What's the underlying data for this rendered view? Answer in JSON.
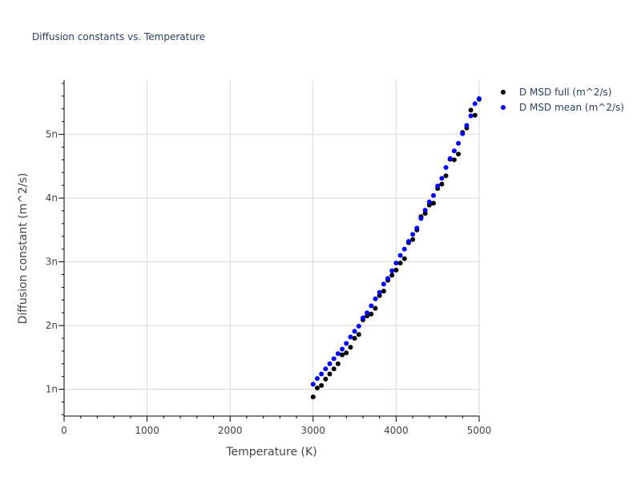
{
  "chart_data": {
    "type": "scatter",
    "title": "Diffusion constants vs. Temperature",
    "xlabel": "Temperature (K)",
    "ylabel": "Diffusion constant (m^2/s)",
    "xlim": [
      0,
      5000
    ],
    "ylim": [
      5.8e-10,
      5.85e-09
    ],
    "x_ticks": [
      0,
      1000,
      2000,
      3000,
      4000,
      5000
    ],
    "x_tick_labels": [
      "0",
      "1000",
      "2000",
      "3000",
      "4000",
      "5000"
    ],
    "y_ticks": [
      1e-09,
      2e-09,
      3e-09,
      4e-09,
      5e-09
    ],
    "y_tick_labels": [
      "1n",
      "2n",
      "3n",
      "4n",
      "5n"
    ],
    "grid": true,
    "legend_position": "top-right",
    "series": [
      {
        "name": "D MSD full (m^2/s)",
        "color": "#000000",
        "x": [
          3000,
          3050,
          3100,
          3150,
          3200,
          3250,
          3300,
          3350,
          3400,
          3450,
          3500,
          3550,
          3600,
          3650,
          3700,
          3750,
          3800,
          3850,
          3900,
          3950,
          4000,
          4050,
          4100,
          4150,
          4200,
          4250,
          4300,
          4350,
          4400,
          4450,
          4500,
          4550,
          4600,
          4650,
          4700,
          4750,
          4800,
          4850,
          4900,
          4950,
          5000
        ],
        "y": [
          8.8e-10,
          1.02e-09,
          1.06e-09,
          1.16e-09,
          1.24e-09,
          1.32e-09,
          1.4e-09,
          1.54e-09,
          1.57e-09,
          1.66e-09,
          1.8e-09,
          1.86e-09,
          2.09e-09,
          2.15e-09,
          2.18e-09,
          2.27e-09,
          2.47e-09,
          2.54e-09,
          2.71e-09,
          2.79e-09,
          2.87e-09,
          2.98e-09,
          3.05e-09,
          3.3e-09,
          3.35e-09,
          3.5e-09,
          3.71e-09,
          3.76e-09,
          3.89e-09,
          3.92e-09,
          4.15e-09,
          4.22e-09,
          4.35e-09,
          4.61e-09,
          4.6e-09,
          4.69e-09,
          5.03e-09,
          5.1e-09,
          5.38e-09,
          5.3e-09,
          5.55e-09
        ]
      },
      {
        "name": "D MSD mean (m^2/s)",
        "color": "#0000ff",
        "x": [
          3000,
          3050,
          3100,
          3150,
          3200,
          3250,
          3300,
          3350,
          3400,
          3450,
          3500,
          3550,
          3600,
          3650,
          3700,
          3750,
          3800,
          3850,
          3900,
          3950,
          4000,
          4050,
          4100,
          4150,
          4200,
          4250,
          4300,
          4350,
          4400,
          4450,
          4500,
          4550,
          4600,
          4650,
          4700,
          4750,
          4800,
          4850,
          4900,
          4950,
          5000
        ],
        "y": [
          1.08e-09,
          1.17e-09,
          1.24e-09,
          1.32e-09,
          1.4e-09,
          1.48e-09,
          1.56e-09,
          1.63e-09,
          1.72e-09,
          1.82e-09,
          1.91e-09,
          1.99e-09,
          2.12e-09,
          2.2e-09,
          2.31e-09,
          2.42e-09,
          2.52e-09,
          2.65e-09,
          2.74e-09,
          2.86e-09,
          2.98e-09,
          3.1e-09,
          3.2e-09,
          3.32e-09,
          3.43e-09,
          3.53e-09,
          3.68e-09,
          3.81e-09,
          3.94e-09,
          4.04e-09,
          4.19e-09,
          4.31e-09,
          4.48e-09,
          4.62e-09,
          4.74e-09,
          4.86e-09,
          5.01e-09,
          5.14e-09,
          5.29e-09,
          5.48e-09,
          5.56e-09
        ]
      }
    ]
  }
}
